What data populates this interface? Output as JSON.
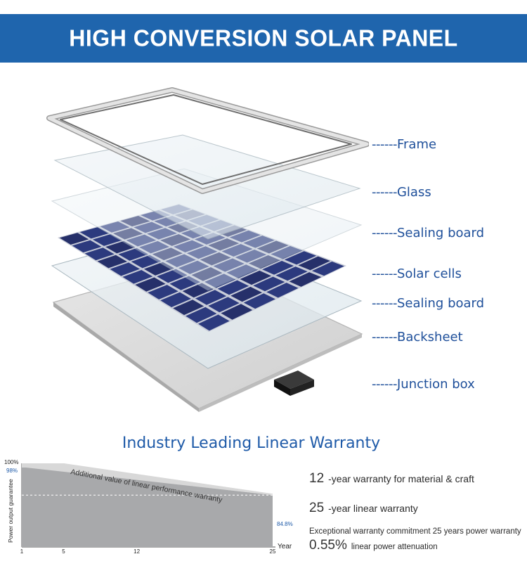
{
  "banner": {
    "title": "HIGH CONVERSION SOLAR PANEL",
    "color": "#1f65ad"
  },
  "layers": [
    {
      "dash": "------",
      "name": "Frame"
    },
    {
      "dash": "------",
      "name": "Glass"
    },
    {
      "dash": "------",
      "name": "Sealing board"
    },
    {
      "dash": "------",
      "name": "Solar cells"
    },
    {
      "dash": "------",
      "name": "Sealing board"
    },
    {
      "dash": "------",
      "name": "Backsheet"
    },
    {
      "dash": "------",
      "name": "Junction box"
    }
  ],
  "warranty": {
    "title": "Industry Leading Linear Warranty",
    "lines": [
      {
        "value": "12",
        "text": "-year warranty for material & craft"
      },
      {
        "value": "25",
        "text": "-year linear warranty"
      }
    ],
    "commitment": "Exceptional warranty commitment 25 years power warranty",
    "attenuation_value": "0.55%",
    "attenuation_text": "linear power attenuation"
  },
  "chart_data": {
    "type": "area",
    "ylabel": "Power output guarantee",
    "xlabel": "Year",
    "y_top_label": "100%",
    "start_label": "98%",
    "end_label": "84.8%",
    "x_ticks": [
      "1",
      "5",
      "12",
      "25"
    ],
    "x": [
      1,
      25
    ],
    "y": [
      98,
      84.8
    ],
    "annotation": "Additional value of linear performance warranty"
  }
}
